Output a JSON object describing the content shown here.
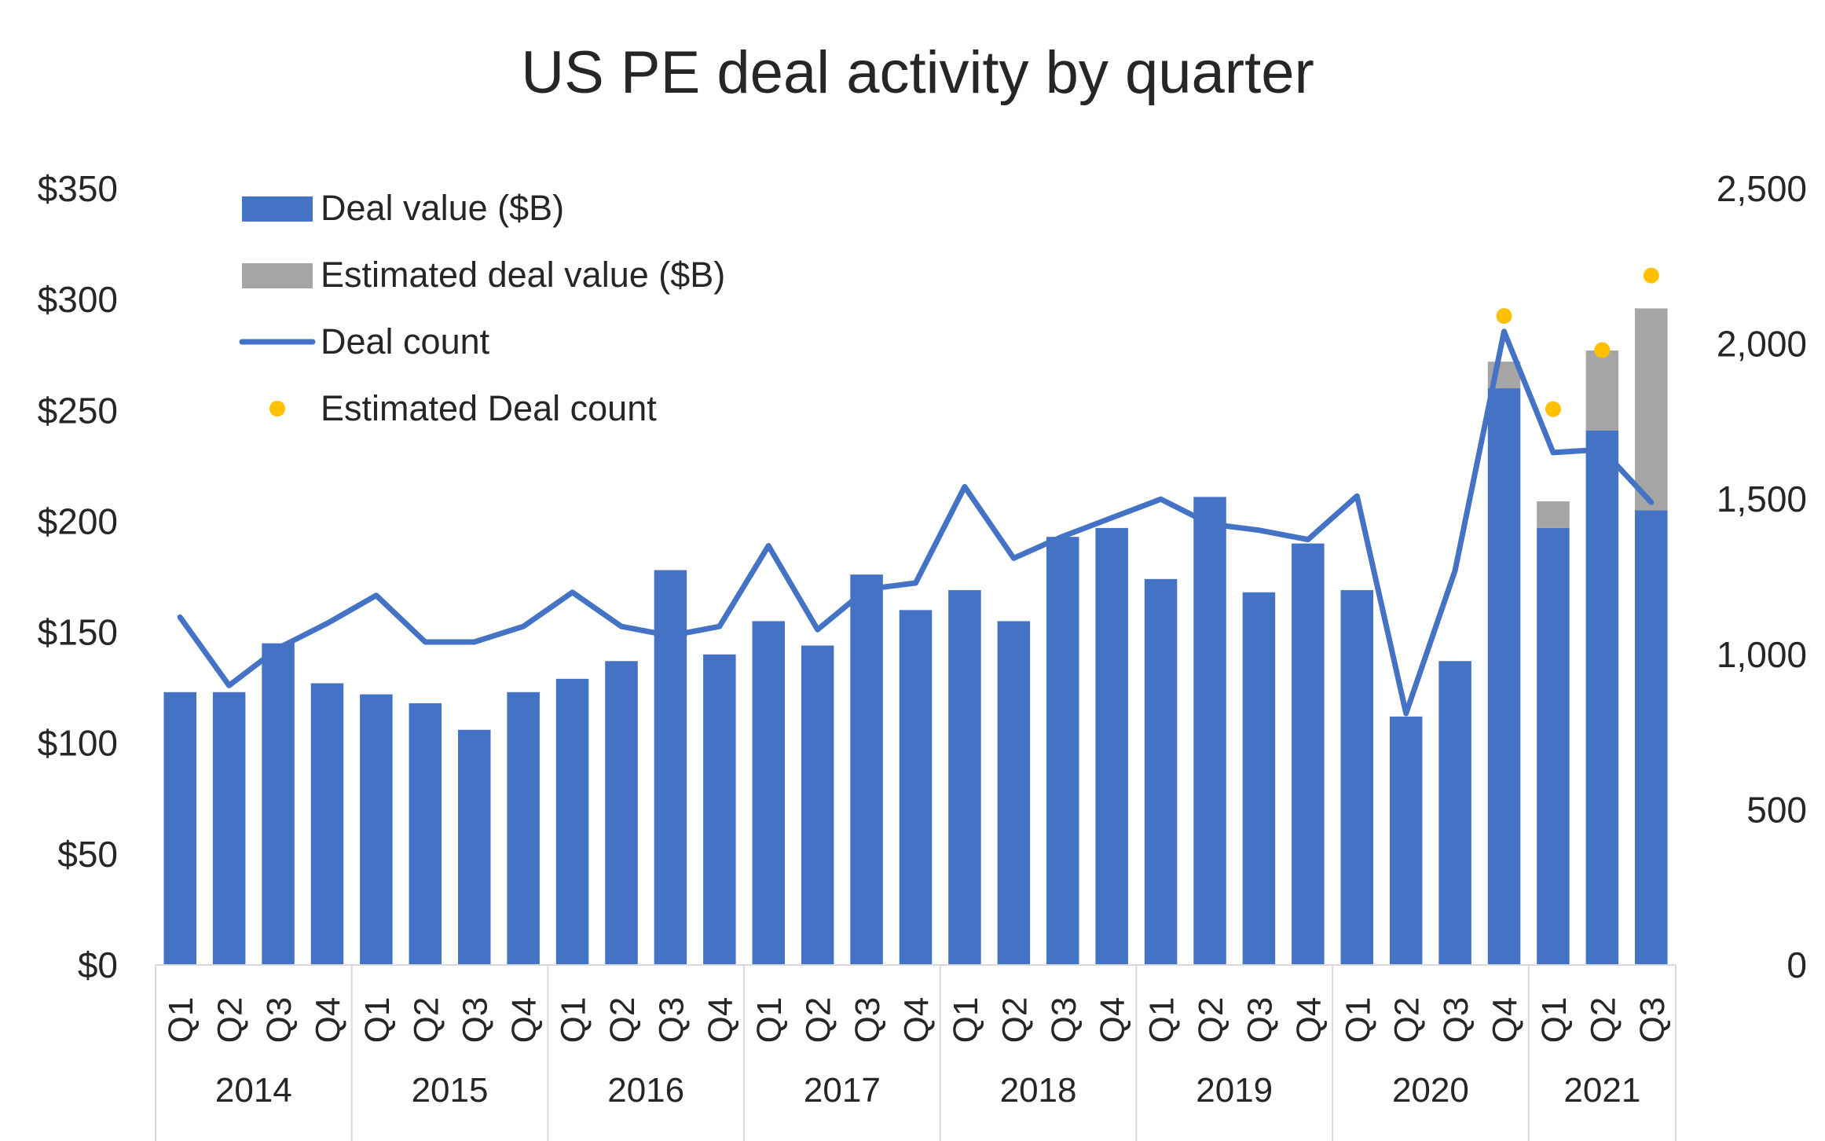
{
  "chart_data": {
    "type": "bar",
    "title": "US PE deal activity by quarter",
    "categories": [
      {
        "quarter": "Q1",
        "year": "2014"
      },
      {
        "quarter": "Q2",
        "year": "2014"
      },
      {
        "quarter": "Q3",
        "year": "2014"
      },
      {
        "quarter": "Q4",
        "year": "2014"
      },
      {
        "quarter": "Q1",
        "year": "2015"
      },
      {
        "quarter": "Q2",
        "year": "2015"
      },
      {
        "quarter": "Q3",
        "year": "2015"
      },
      {
        "quarter": "Q4",
        "year": "2015"
      },
      {
        "quarter": "Q1",
        "year": "2016"
      },
      {
        "quarter": "Q2",
        "year": "2016"
      },
      {
        "quarter": "Q3",
        "year": "2016"
      },
      {
        "quarter": "Q4",
        "year": "2016"
      },
      {
        "quarter": "Q1",
        "year": "2017"
      },
      {
        "quarter": "Q2",
        "year": "2017"
      },
      {
        "quarter": "Q3",
        "year": "2017"
      },
      {
        "quarter": "Q4",
        "year": "2017"
      },
      {
        "quarter": "Q1",
        "year": "2018"
      },
      {
        "quarter": "Q2",
        "year": "2018"
      },
      {
        "quarter": "Q3",
        "year": "2018"
      },
      {
        "quarter": "Q4",
        "year": "2018"
      },
      {
        "quarter": "Q1",
        "year": "2019"
      },
      {
        "quarter": "Q2",
        "year": "2019"
      },
      {
        "quarter": "Q3",
        "year": "2019"
      },
      {
        "quarter": "Q4",
        "year": "2019"
      },
      {
        "quarter": "Q1",
        "year": "2020"
      },
      {
        "quarter": "Q2",
        "year": "2020"
      },
      {
        "quarter": "Q3",
        "year": "2020"
      },
      {
        "quarter": "Q4",
        "year": "2020"
      },
      {
        "quarter": "Q1",
        "year": "2021"
      },
      {
        "quarter": "Q2",
        "year": "2021"
      },
      {
        "quarter": "Q3",
        "year": "2021"
      }
    ],
    "years": [
      "2014",
      "2015",
      "2016",
      "2017",
      "2018",
      "2019",
      "2020",
      "2021"
    ],
    "y_left": {
      "min": 0,
      "max": 350,
      "ticks": [
        "$0",
        "$50",
        "$100",
        "$150",
        "$200",
        "$250",
        "$300",
        "$350"
      ]
    },
    "y_right": {
      "min": 0,
      "max": 2500,
      "ticks": [
        "0",
        "500",
        "1,000",
        "1,500",
        "2,000",
        "2,500"
      ]
    },
    "legend_position": "top-left",
    "grid": false,
    "series": [
      {
        "name": "Deal value ($B)",
        "type": "bar",
        "stack": "value",
        "axis": "left",
        "color": "#4472C4",
        "values": [
          123,
          123,
          145,
          127,
          122,
          118,
          106,
          123,
          129,
          137,
          178,
          140,
          155,
          144,
          176,
          160,
          169,
          155,
          193,
          197,
          174,
          211,
          168,
          190,
          169,
          112,
          137,
          260,
          197,
          241,
          205
        ]
      },
      {
        "name": "Estimated deal value ($B)",
        "type": "bar",
        "stack": "value",
        "axis": "left",
        "color": "#A5A5A5",
        "values": [
          0,
          0,
          0,
          0,
          0,
          0,
          0,
          0,
          0,
          0,
          0,
          0,
          0,
          0,
          0,
          0,
          0,
          0,
          0,
          0,
          0,
          0,
          0,
          0,
          0,
          0,
          0,
          12,
          12,
          36,
          91
        ]
      },
      {
        "name": "Deal count",
        "type": "line",
        "axis": "right",
        "color": "#4472C4",
        "values": [
          1120,
          900,
          1020,
          1100,
          1190,
          1040,
          1040,
          1090,
          1200,
          1090,
          1060,
          1090,
          1350,
          1080,
          1210,
          1230,
          1540,
          1310,
          1380,
          1440,
          1500,
          1420,
          1400,
          1370,
          1510,
          810,
          1270,
          2040,
          1650,
          1660,
          1490
        ]
      },
      {
        "name": "Estimated Deal count",
        "type": "scatter",
        "axis": "right",
        "color": "#FFC000",
        "points": [
          {
            "index": 27,
            "value": 2090
          },
          {
            "index": 28,
            "value": 1790
          },
          {
            "index": 29,
            "value": 1980
          },
          {
            "index": 30,
            "value": 2220
          }
        ]
      }
    ]
  }
}
